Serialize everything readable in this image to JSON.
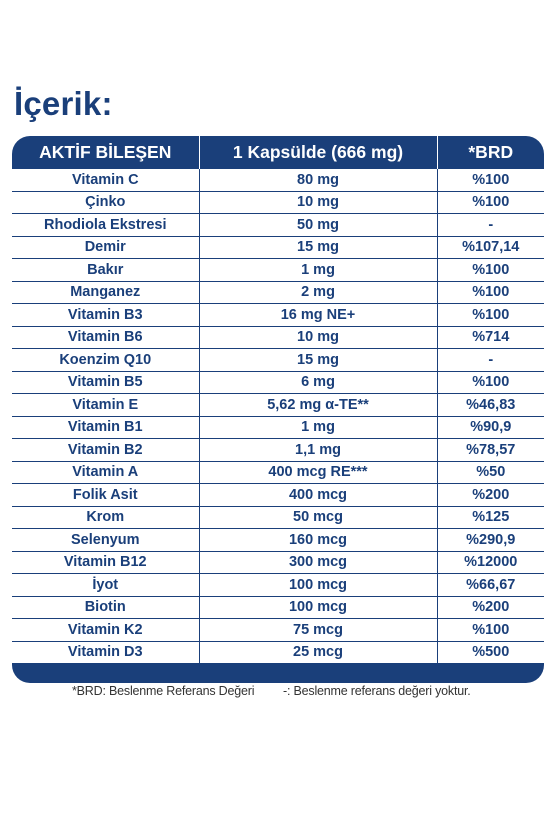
{
  "title": "İçerik:",
  "headers": [
    "AKTİF BİLEŞEN",
    "1 Kapsülde (666 mg)",
    "*BRD"
  ],
  "rows": [
    [
      "Vitamin C",
      "80 mg",
      "%100"
    ],
    [
      "Çinko",
      "10 mg",
      "%100"
    ],
    [
      "Rhodiola Ekstresi",
      "50 mg",
      "-"
    ],
    [
      "Demir",
      "15 mg",
      "%107,14"
    ],
    [
      "Bakır",
      "1 mg",
      "%100"
    ],
    [
      "Manganez",
      "2 mg",
      "%100"
    ],
    [
      "Vitamin B3",
      "16 mg NE+",
      "%100"
    ],
    [
      "Vitamin B6",
      "10 mg",
      "%714"
    ],
    [
      "Koenzim Q10",
      "15 mg",
      "-"
    ],
    [
      "Vitamin B5",
      "6 mg",
      "%100"
    ],
    [
      "Vitamin E",
      "5,62 mg α-TE**",
      "%46,83"
    ],
    [
      "Vitamin B1",
      "1 mg",
      "%90,9"
    ],
    [
      "Vitamin B2",
      "1,1 mg",
      "%78,57"
    ],
    [
      "Vitamin A",
      "400 mcg RE***",
      "%50"
    ],
    [
      "Folik Asit",
      "400 mcg",
      "%200"
    ],
    [
      "Krom",
      "50 mcg",
      "%125"
    ],
    [
      "Selenyum",
      "160 mcg",
      "%290,9"
    ],
    [
      "Vitamin B12",
      "300 mcg",
      "%12000"
    ],
    [
      "İyot",
      "100 mcg",
      "%66,67"
    ],
    [
      "Biotin",
      "100 mcg",
      "%200"
    ],
    [
      "Vitamin K2",
      "75 mcg",
      "%100"
    ],
    [
      "Vitamin D3",
      "25 mcg",
      "%500"
    ]
  ],
  "footnotes": {
    "brd": "*BRD: Beslenme Referans Değeri",
    "dash": "-: Beslenme referans değeri yoktur."
  },
  "colors": {
    "brand_navy": "#1a3f7a",
    "cell_background": "#ffffff",
    "footnote_text": "#333333"
  }
}
